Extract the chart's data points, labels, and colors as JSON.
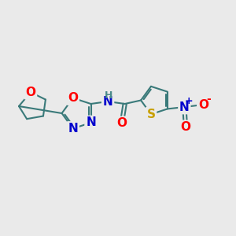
{
  "bg_color": "#eaeaea",
  "bond_color": "#3a7a7a",
  "bond_width": 1.5,
  "atom_colors": {
    "O": "#ff0000",
    "N": "#0000cd",
    "S": "#c8a000",
    "H": "#4a8a8a",
    "C": "#eaeaea",
    "N_plus": "#0000cd",
    "O_minus": "#ff0000"
  },
  "font_size": 11,
  "font_size_small": 9,
  "figsize": [
    3.0,
    3.0
  ],
  "dpi": 100
}
